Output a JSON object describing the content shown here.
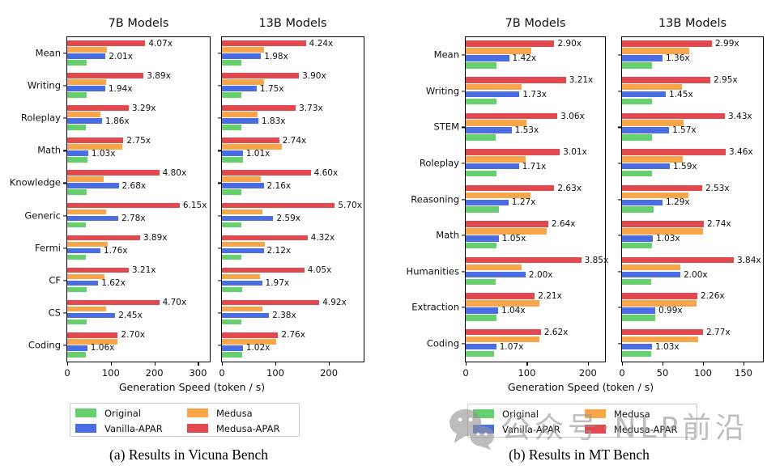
{
  "figure": {
    "xlabel": "Generation Speed (token / s)",
    "caption_a": "(a) Results in Vicuna Bench",
    "caption_b": "(b) Results in MT Bench",
    "watermark": {
      "icon": "wechat-icon",
      "text": "公众号·NLP前沿"
    }
  },
  "colors": {
    "original": "#65d06d",
    "vanilla_apar": "#4b6de3",
    "medusa": "#f9a64a",
    "medusa_apar": "#e2494f",
    "watermark_gray": "#969696"
  },
  "legend": {
    "items": [
      {
        "key": "original",
        "label": "Original"
      },
      {
        "key": "medusa",
        "label": "Medusa"
      },
      {
        "key": "vanilla_apar",
        "label": "Vanilla-APAR"
      },
      {
        "key": "medusa_apar",
        "label": "Medusa-APAR"
      }
    ]
  },
  "chart_data": [
    {
      "id": "vicuna-7b",
      "type": "bar",
      "orientation": "horizontal",
      "title": "7B Models",
      "bench": "Vicuna Bench",
      "xlabel": "Generation Speed (token / s)",
      "xlim": [
        0,
        327
      ],
      "xticks": [
        0,
        100,
        200,
        300
      ],
      "show_category_labels": true,
      "series_order_top_to_bottom": [
        "medusa_apar",
        "medusa",
        "vanilla_apar",
        "original"
      ],
      "rows": [
        {
          "category": "Mean",
          "original": 44,
          "vanilla_apar": 88,
          "medusa": 91,
          "medusa_apar": 179,
          "vanilla_apar_label": "2.01x",
          "medusa_apar_label": "4.07x"
        },
        {
          "category": "Writing",
          "original": 45,
          "vanilla_apar": 87,
          "medusa": 89,
          "medusa_apar": 175,
          "vanilla_apar_label": "1.94x",
          "medusa_apar_label": "3.89x"
        },
        {
          "category": "Roleplay",
          "original": 43,
          "vanilla_apar": 80,
          "medusa": 77,
          "medusa_apar": 141,
          "vanilla_apar_label": "1.86x",
          "medusa_apar_label": "3.29x"
        },
        {
          "category": "Math",
          "original": 47,
          "vanilla_apar": 48,
          "medusa": 126,
          "medusa_apar": 129,
          "vanilla_apar_label": "1.03x",
          "medusa_apar_label": "2.75x"
        },
        {
          "category": "Knowledge",
          "original": 44,
          "vanilla_apar": 118,
          "medusa": 84,
          "medusa_apar": 211,
          "vanilla_apar_label": "2.68x",
          "medusa_apar_label": "4.80x"
        },
        {
          "category": "Generic",
          "original": 42,
          "vanilla_apar": 117,
          "medusa": 89,
          "medusa_apar": 258,
          "vanilla_apar_label": "2.78x",
          "medusa_apar_label": "6.15x"
        },
        {
          "category": "Fermi",
          "original": 43,
          "vanilla_apar": 76,
          "medusa": 92,
          "medusa_apar": 167,
          "vanilla_apar_label": "1.76x",
          "medusa_apar_label": "3.89x"
        },
        {
          "category": "CF",
          "original": 44,
          "vanilla_apar": 71,
          "medusa": 85,
          "medusa_apar": 141,
          "vanilla_apar_label": "1.62x",
          "medusa_apar_label": "3.21x"
        },
        {
          "category": "CS",
          "original": 45,
          "vanilla_apar": 110,
          "medusa": 89,
          "medusa_apar": 211,
          "vanilla_apar_label": "2.45x",
          "medusa_apar_label": "4.70x"
        },
        {
          "category": "Coding",
          "original": 43,
          "vanilla_apar": 46,
          "medusa": 116,
          "medusa_apar": 116,
          "vanilla_apar_label": "1.06x",
          "medusa_apar_label": "2.70x"
        }
      ]
    },
    {
      "id": "vicuna-13b",
      "type": "bar",
      "orientation": "horizontal",
      "title": "13B Models",
      "bench": "Vicuna Bench",
      "xlabel": "Generation Speed (token / s)",
      "xlim": [
        0,
        265
      ],
      "xticks": [
        0,
        100,
        200
      ],
      "show_category_labels": false,
      "series_order_top_to_bottom": [
        "medusa_apar",
        "medusa",
        "vanilla_apar",
        "original"
      ],
      "rows": [
        {
          "category": "Mean",
          "original": 37,
          "vanilla_apar": 73,
          "medusa": 78,
          "medusa_apar": 157,
          "vanilla_apar_label": "1.98x",
          "medusa_apar_label": "4.24x"
        },
        {
          "category": "Writing",
          "original": 37,
          "vanilla_apar": 65,
          "medusa": 79,
          "medusa_apar": 144,
          "vanilla_apar_label": "1.75x",
          "medusa_apar_label": "3.90x"
        },
        {
          "category": "Roleplay",
          "original": 37,
          "vanilla_apar": 68,
          "medusa": 67,
          "medusa_apar": 138,
          "vanilla_apar_label": "1.83x",
          "medusa_apar_label": "3.73x"
        },
        {
          "category": "Math",
          "original": 39,
          "vanilla_apar": 39,
          "medusa": 112,
          "medusa_apar": 107,
          "vanilla_apar_label": "1.01x",
          "medusa_apar_label": "2.74x"
        },
        {
          "category": "Knowledge",
          "original": 36,
          "vanilla_apar": 78,
          "medusa": 73,
          "medusa_apar": 166,
          "vanilla_apar_label": "2.16x",
          "medusa_apar_label": "4.60x"
        },
        {
          "category": "Generic",
          "original": 37,
          "vanilla_apar": 96,
          "medusa": 76,
          "medusa_apar": 211,
          "vanilla_apar_label": "2.59x",
          "medusa_apar_label": "5.70x"
        },
        {
          "category": "Fermi",
          "original": 37,
          "vanilla_apar": 78,
          "medusa": 81,
          "medusa_apar": 160,
          "vanilla_apar_label": "2.12x",
          "medusa_apar_label": "4.32x"
        },
        {
          "category": "CF",
          "original": 38,
          "vanilla_apar": 75,
          "medusa": 71,
          "medusa_apar": 154,
          "vanilla_apar_label": "1.97x",
          "medusa_apar_label": "4.05x"
        },
        {
          "category": "CS",
          "original": 37,
          "vanilla_apar": 88,
          "medusa": 76,
          "medusa_apar": 182,
          "vanilla_apar_label": "2.38x",
          "medusa_apar_label": "4.92x"
        },
        {
          "category": "Coding",
          "original": 38,
          "vanilla_apar": 39,
          "medusa": 102,
          "medusa_apar": 105,
          "vanilla_apar_label": "1.02x",
          "medusa_apar_label": "2.76x"
        }
      ]
    },
    {
      "id": "mt-7b",
      "type": "bar",
      "orientation": "horizontal",
      "title": "7B Models",
      "bench": "MT Bench",
      "xlabel": "Generation Speed (token / s)",
      "xlim": [
        0,
        228
      ],
      "xticks": [
        0,
        100,
        200
      ],
      "show_category_labels": true,
      "series_order_top_to_bottom": [
        "medusa_apar",
        "medusa",
        "vanilla_apar",
        "original"
      ],
      "rows": [
        {
          "category": "Mean",
          "original": 50,
          "vanilla_apar": 71,
          "medusa": 108,
          "medusa_apar": 145,
          "vanilla_apar_label": "1.42x",
          "medusa_apar_label": "2.90x"
        },
        {
          "category": "Writing",
          "original": 51,
          "vanilla_apar": 88,
          "medusa": 92,
          "medusa_apar": 164,
          "vanilla_apar_label": "1.73x",
          "medusa_apar_label": "3.21x"
        },
        {
          "category": "STEM",
          "original": 49,
          "vanilla_apar": 75,
          "medusa": 100,
          "medusa_apar": 150,
          "vanilla_apar_label": "1.53x",
          "medusa_apar_label": "3.06x"
        },
        {
          "category": "Roleplay",
          "original": 51,
          "vanilla_apar": 87,
          "medusa": 98,
          "medusa_apar": 154,
          "vanilla_apar_label": "1.71x",
          "medusa_apar_label": "3.01x"
        },
        {
          "category": "Reasoning",
          "original": 55,
          "vanilla_apar": 70,
          "medusa": 106,
          "medusa_apar": 145,
          "vanilla_apar_label": "1.27x",
          "medusa_apar_label": "2.63x"
        },
        {
          "category": "Math",
          "original": 51,
          "vanilla_apar": 54,
          "medusa": 132,
          "medusa_apar": 135,
          "vanilla_apar_label": "1.05x",
          "medusa_apar_label": "2.64x"
        },
        {
          "category": "Humanities",
          "original": 49,
          "vanilla_apar": 98,
          "medusa": 91,
          "medusa_apar": 189,
          "vanilla_apar_label": "2.00x",
          "medusa_apar_label": "3.85x"
        },
        {
          "category": "Extraction",
          "original": 51,
          "vanilla_apar": 53,
          "medusa": 121,
          "medusa_apar": 113,
          "vanilla_apar_label": "1.04x",
          "medusa_apar_label": "2.21x"
        },
        {
          "category": "Coding",
          "original": 47,
          "vanilla_apar": 50,
          "medusa": 120,
          "medusa_apar": 123,
          "vanilla_apar_label": "1.07x",
          "medusa_apar_label": "2.62x"
        }
      ]
    },
    {
      "id": "mt-13b",
      "type": "bar",
      "orientation": "horizontal",
      "title": "13B Models",
      "bench": "MT Bench",
      "xlabel": "Generation Speed (token / s)",
      "xlim": [
        0,
        174
      ],
      "xticks": [
        0,
        50,
        100,
        150
      ],
      "show_category_labels": false,
      "series_order_top_to_bottom": [
        "medusa_apar",
        "medusa",
        "vanilla_apar",
        "original"
      ],
      "rows": [
        {
          "category": "Mean",
          "original": 37,
          "vanilla_apar": 50,
          "medusa": 83,
          "medusa_apar": 111,
          "vanilla_apar_label": "1.36x",
          "medusa_apar_label": "2.99x"
        },
        {
          "category": "Writing",
          "original": 37,
          "vanilla_apar": 54,
          "medusa": 74,
          "medusa_apar": 109,
          "vanilla_apar_label": "1.45x",
          "medusa_apar_label": "2.95x"
        },
        {
          "category": "STEM",
          "original": 37,
          "vanilla_apar": 58,
          "medusa": 76,
          "medusa_apar": 127,
          "vanilla_apar_label": "1.57x",
          "medusa_apar_label": "3.43x"
        },
        {
          "category": "Roleplay",
          "original": 37,
          "vanilla_apar": 59,
          "medusa": 75,
          "medusa_apar": 128,
          "vanilla_apar_label": "1.59x",
          "medusa_apar_label": "3.46x"
        },
        {
          "category": "Reasoning",
          "original": 39,
          "vanilla_apar": 50,
          "medusa": 82,
          "medusa_apar": 99,
          "vanilla_apar_label": "1.29x",
          "medusa_apar_label": "2.53x"
        },
        {
          "category": "Math",
          "original": 37,
          "vanilla_apar": 38,
          "medusa": 100,
          "medusa_apar": 101,
          "vanilla_apar_label": "1.03x",
          "medusa_apar_label": "2.74x"
        },
        {
          "category": "Humanities",
          "original": 36,
          "vanilla_apar": 72,
          "medusa": 72,
          "medusa_apar": 138,
          "vanilla_apar_label": "2.00x",
          "medusa_apar_label": "3.84x"
        },
        {
          "category": "Extraction",
          "original": 41,
          "vanilla_apar": 41,
          "medusa": 92,
          "medusa_apar": 93,
          "vanilla_apar_label": "0.99x",
          "medusa_apar_label": "2.26x"
        },
        {
          "category": "Coding",
          "original": 36,
          "vanilla_apar": 37,
          "medusa": 94,
          "medusa_apar": 100,
          "vanilla_apar_label": "1.03x",
          "medusa_apar_label": "2.77x"
        }
      ]
    }
  ]
}
